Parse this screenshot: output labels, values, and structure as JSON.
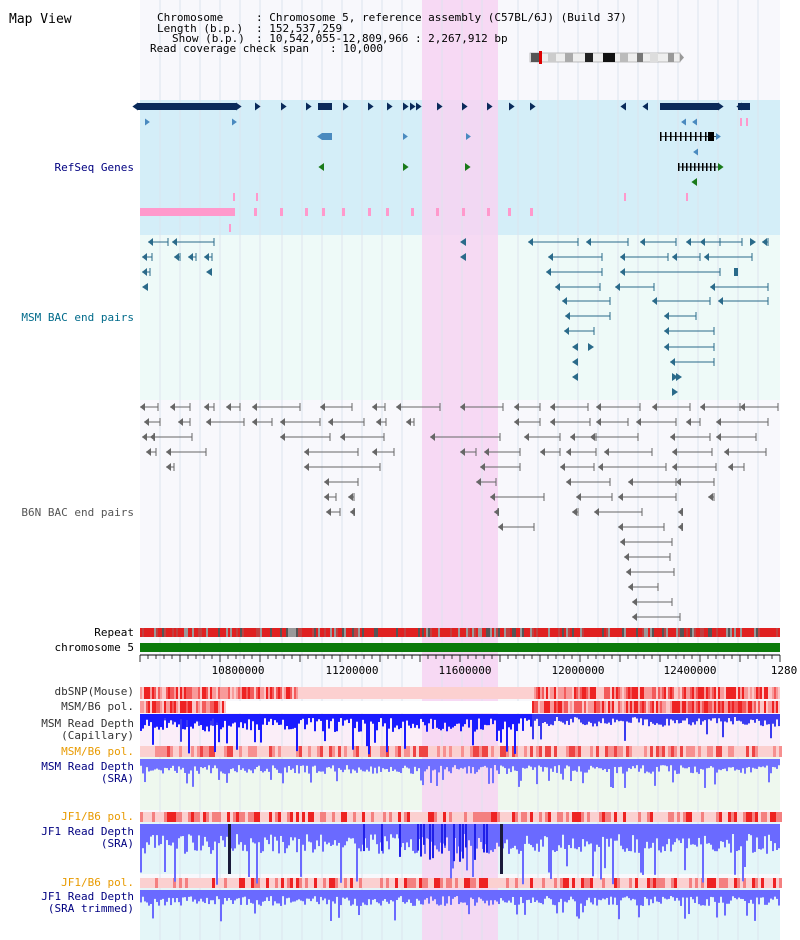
{
  "title": "Map View",
  "info": {
    "chromosome_label": "Chromosome",
    "chromosome_value": ": Chromosome 5, reference assembly (C57BL/6J) (Build 37)",
    "length_label": "Length (b.p.)",
    "length_value": ": 152,537,259",
    "show_label": "Show (b.p.)",
    "show_value": ": 10,542,055-12,809,966 : 2,267,912 bp",
    "coverage_label": "Read coverage check span",
    "coverage_value": ": 10,000"
  },
  "axis": {
    "ticks": [
      "10800000",
      "11200000",
      "11600000",
      "12000000",
      "12400000",
      "1280"
    ]
  },
  "tracks": {
    "refseq": "RefSeq Genes",
    "msm_bac": "MSM BAC end pairs",
    "b6n_bac": "B6N BAC end pairs",
    "repeat": "Repeat",
    "chromosome": "chromosome 5",
    "dbsnp": "dbSNP(Mouse)",
    "msm_pol": "MSM/B6 pol.",
    "msm_depth_cap_1": "MSM Read Depth",
    "msm_depth_cap_2": "(Capillary)",
    "msm_pol_sra": "MSM/B6 pol.",
    "msm_depth_sra_1": "MSM Read Depth",
    "msm_depth_sra_2": "(SRA)",
    "jf1_pol": "JF1/B6 pol.",
    "jf1_depth_1": "JF1 Read Depth",
    "jf1_depth_2": "(SRA)",
    "jf1_pol_trim": "JF1/B6 pol.",
    "jf1_trim_1": "JF1 Read Depth",
    "jf1_trim_2": "(SRA trimmed)"
  },
  "colors": {
    "highlight": "#f7d6f0",
    "refseq_band": "#d7f0f8",
    "gene_dark": "#0a2a5a",
    "gene_mid": "#4a8abf",
    "gene_green": "#1a7a1a",
    "pink": "#ff99cc",
    "msm_bac": "#2a6a8a",
    "b6n_bac": "#666666",
    "repeat_red": "#e02020",
    "chrom_green": "#0a7a0a",
    "depth_blue": "#3333ff",
    "label_navy": "#000080",
    "label_teal": "#006a8a",
    "label_orange": "#e89a00"
  }
}
